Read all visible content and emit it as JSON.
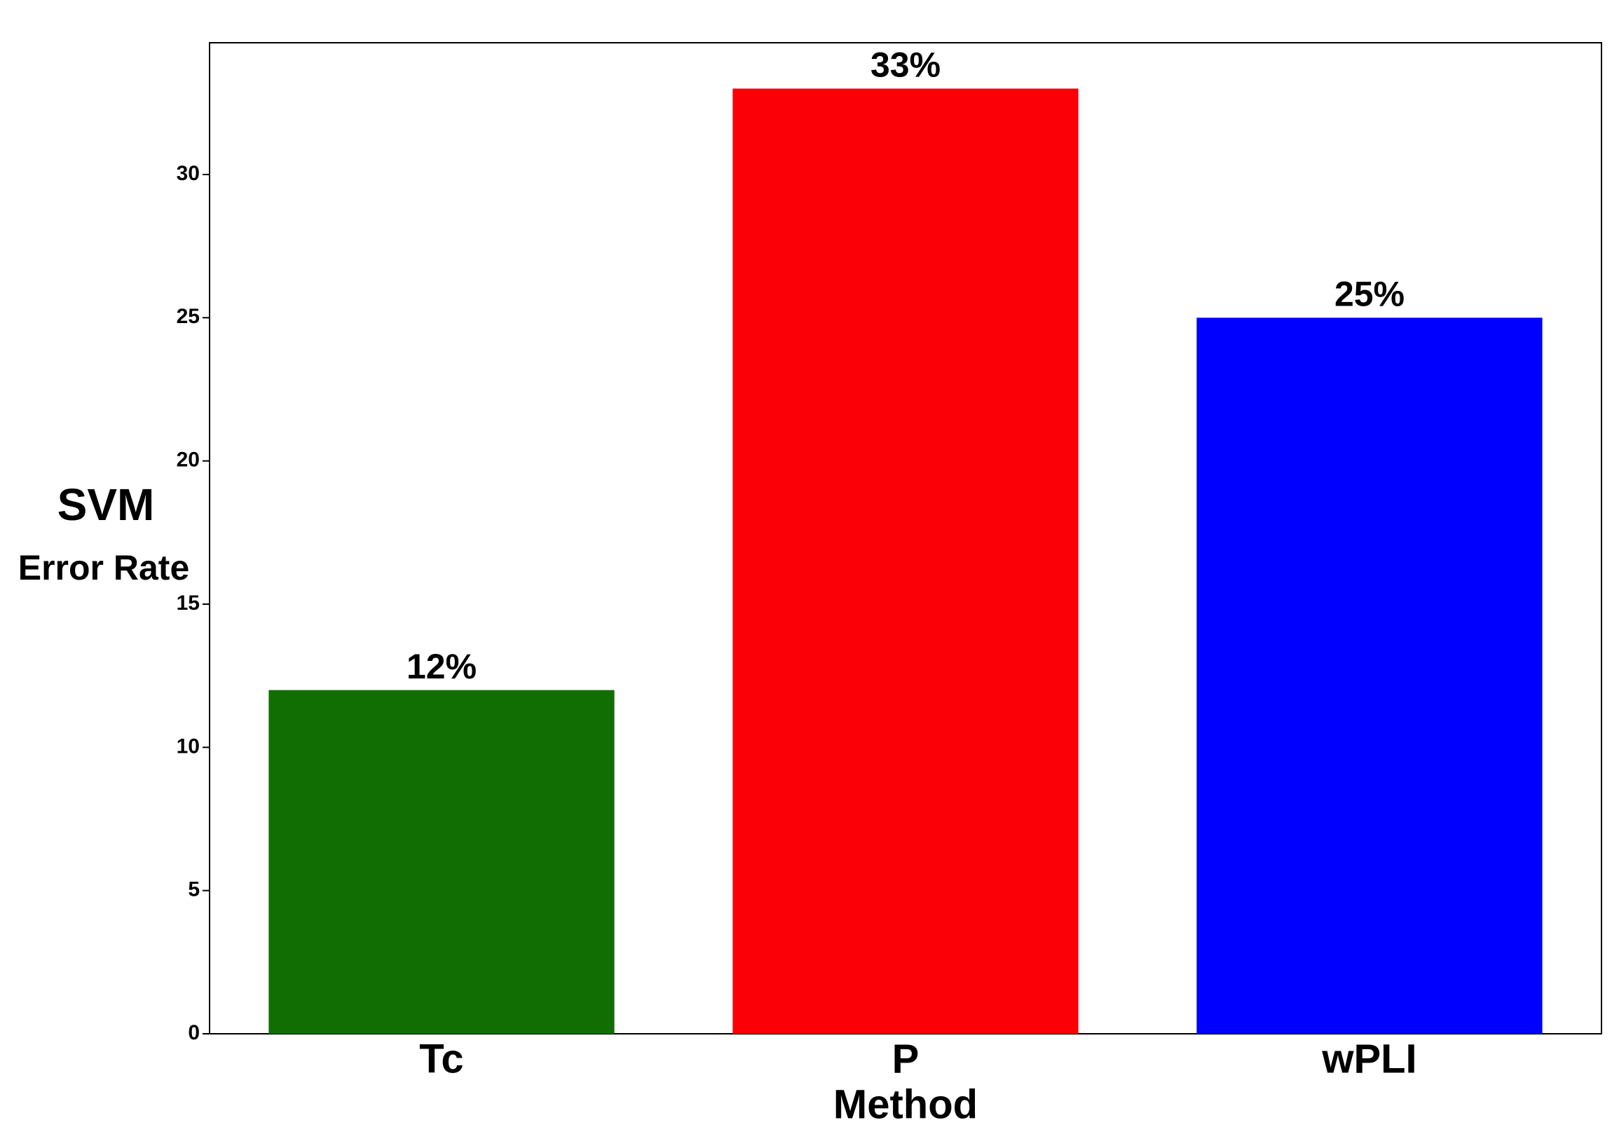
{
  "chart_data": {
    "type": "bar",
    "categories": [
      "Tc",
      "P",
      "wPLI"
    ],
    "series": [
      {
        "values": [
          12,
          33,
          25
        ],
        "value_labels": [
          "12%",
          "33%",
          "25%"
        ],
        "colors": [
          "#116e03",
          "#fb0007",
          "#0000ff"
        ]
      }
    ],
    "x_label": "Method",
    "y_label_lines": [
      "SVM",
      "Error Rate"
    ],
    "ylim": [
      0,
      34.6
    ],
    "yticks": [
      0,
      5,
      10,
      15,
      20,
      25,
      30
    ],
    "grid": false
  }
}
